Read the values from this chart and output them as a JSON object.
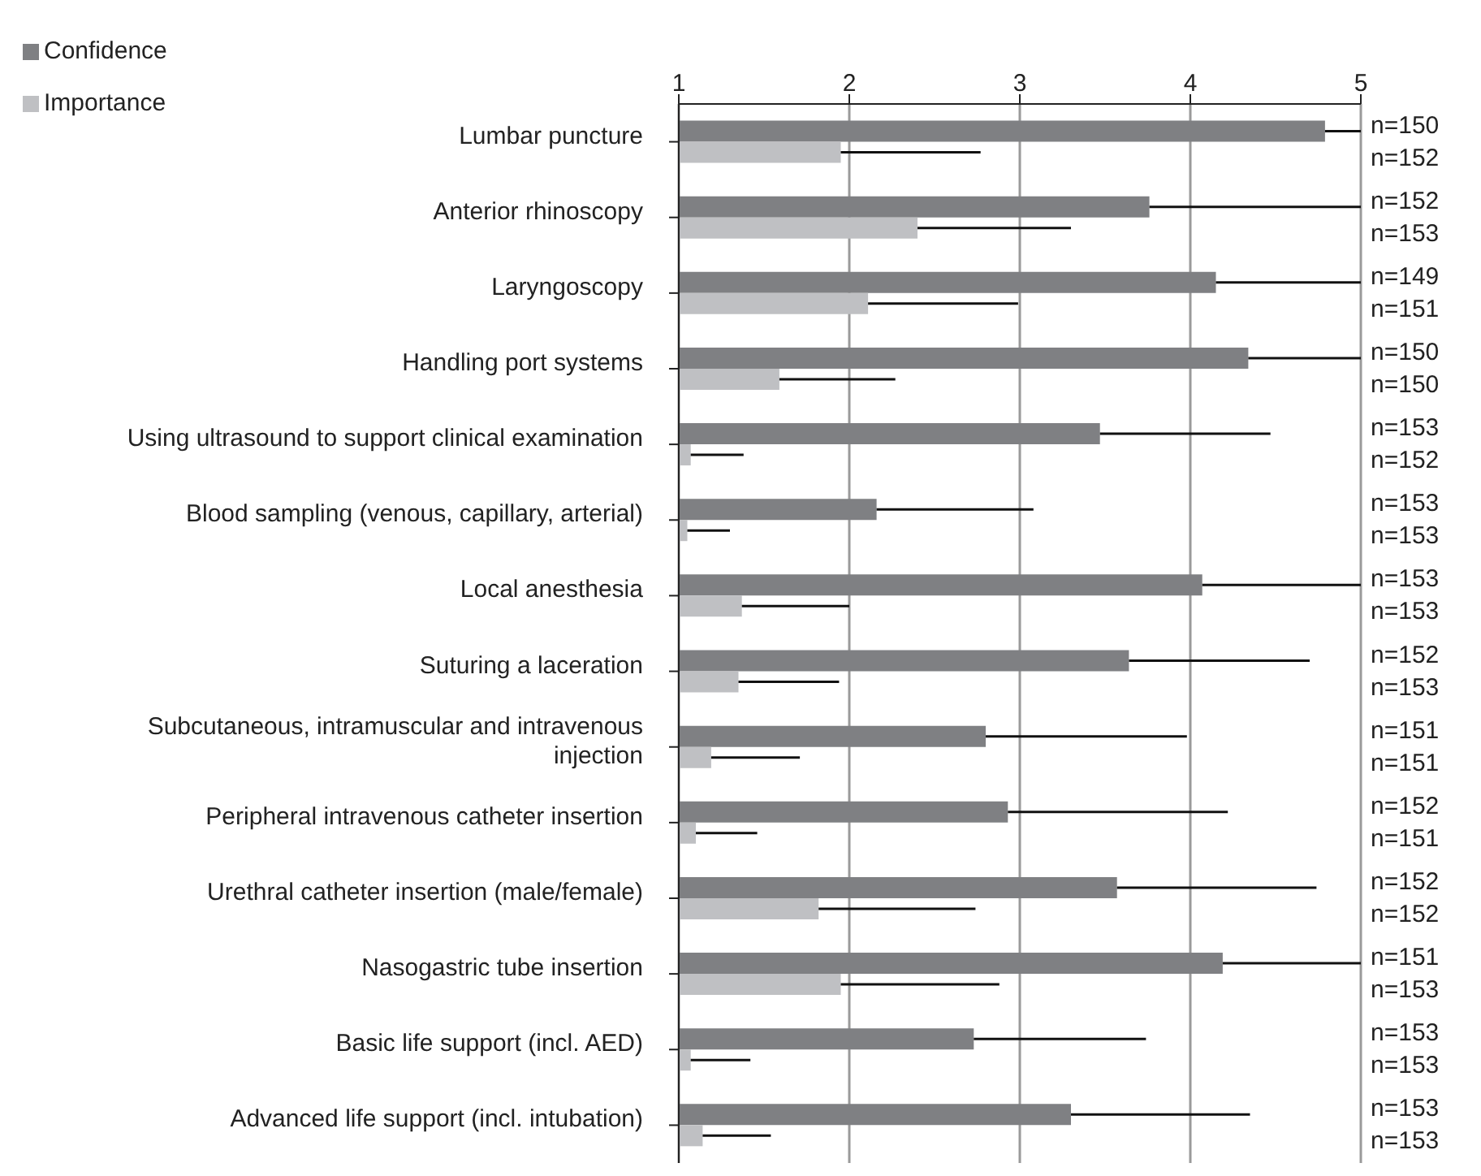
{
  "chart_data": {
    "type": "bar",
    "orientation": "horizontal",
    "categories": [
      "Lumbar puncture",
      "Anterior rhinoscopy",
      "Laryngoscopy",
      "Handling port systems",
      "Using ultrasound to support clinical examination",
      "Blood sampling (venous, capillary, arterial)",
      "Local anesthesia",
      "Suturing a laceration",
      "Subcutaneous, intramuscular and intravenous injection",
      "Peripheral intravenous catheter insertion",
      "Urethral catheter insertion (male/female)",
      "Nasogastric tube insertion",
      "Basic life support (incl. AED)",
      "Advanced life support (incl. intubation)"
    ],
    "series": [
      {
        "name": "Confidence",
        "color": "#7f8083",
        "values": [
          4.79,
          3.76,
          4.15,
          4.34,
          3.47,
          2.16,
          4.07,
          3.64,
          2.8,
          2.93,
          3.57,
          4.19,
          2.73,
          3.3
        ],
        "errors": [
          [
            4.79,
            5
          ],
          [
            3.76,
            5
          ],
          [
            4.15,
            5
          ],
          [
            4.34,
            5
          ],
          [
            3.47,
            4.47
          ],
          [
            2.16,
            3.08
          ],
          [
            4.07,
            5
          ],
          [
            3.64,
            4.7
          ],
          [
            2.8,
            3.98
          ],
          [
            2.93,
            4.22
          ],
          [
            3.57,
            4.74
          ],
          [
            4.19,
            5
          ],
          [
            2.73,
            3.74
          ],
          [
            3.3,
            4.35
          ]
        ]
      },
      {
        "name": "Importance",
        "color": "#bfc0c3",
        "values": [
          1.95,
          2.4,
          2.11,
          1.59,
          1.07,
          1.05,
          1.37,
          1.35,
          1.19,
          1.1,
          1.82,
          1.95,
          1.07,
          1.14
        ],
        "errors": [
          [
            1.95,
            2.77
          ],
          [
            2.4,
            3.3
          ],
          [
            2.11,
            2.99
          ],
          [
            1.59,
            2.27
          ],
          [
            1.07,
            1.38
          ],
          [
            1.05,
            1.3
          ],
          [
            1.37,
            2.0
          ],
          [
            1.35,
            1.94
          ],
          [
            1.19,
            1.71
          ],
          [
            1.1,
            1.46
          ],
          [
            1.82,
            2.74
          ],
          [
            1.95,
            2.88
          ],
          [
            1.07,
            1.42
          ],
          [
            1.14,
            1.54
          ]
        ]
      }
    ],
    "annotations": [
      "n=150",
      "n=152",
      "n=152",
      "n=153",
      "n=149",
      "n=151",
      "n=150",
      "n=150",
      "n=153",
      "n=152",
      "n=153",
      "n=153",
      "n=153",
      "n=153",
      "n=152",
      "n=153",
      "n=151",
      "n=151",
      "n=152",
      "n=151",
      "n=152",
      "n=152",
      "n=151",
      "n=153",
      "n=153",
      "n=153",
      "n=153",
      "n=153"
    ],
    "xlim": [
      1,
      5
    ],
    "xticks": [
      1,
      2,
      3,
      4,
      5
    ],
    "grid": "x",
    "legend": "top left"
  }
}
